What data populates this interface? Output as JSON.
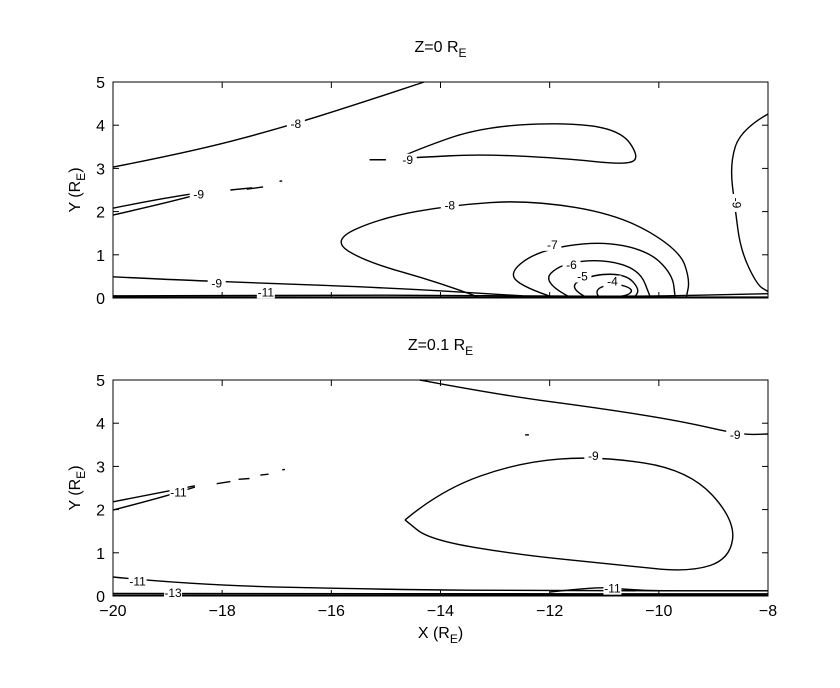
{
  "chart_data": [
    {
      "type": "contour",
      "title": {
        "text": "Z=0 R",
        "subscript": "E"
      },
      "ylabel": {
        "text": "Y (R",
        "subscript": "E",
        "end": ")"
      },
      "xlim": [
        -20,
        -8
      ],
      "ylim": [
        0,
        5
      ],
      "xticks": [
        -20,
        -18,
        -16,
        -14,
        -12,
        -10,
        -8
      ],
      "yticks": [
        0,
        1,
        2,
        3,
        4,
        5
      ],
      "color": "#000000",
      "contour_levels": [
        -8,
        -9,
        -9,
        -8,
        -7,
        -6,
        -5,
        -4,
        -9,
        -9,
        -11
      ]
    },
    {
      "type": "contour",
      "title": {
        "text": "Z=0.1 R",
        "subscript": "E"
      },
      "ylabel": {
        "text": "Y (R",
        "subscript": "E",
        "end": ")"
      },
      "xlabel": {
        "text": "X (R",
        "subscript": "E",
        "end": ")"
      },
      "xlim": [
        -20,
        -8
      ],
      "ylim": [
        0,
        5
      ],
      "xticks": [
        {
          "value": -20,
          "label": "−20"
        },
        {
          "value": -18,
          "label": "−18"
        },
        {
          "value": -16,
          "label": "−16"
        },
        {
          "value": -14,
          "label": "−14"
        },
        {
          "value": -12,
          "label": "−12"
        },
        {
          "value": -10,
          "label": "−10"
        },
        {
          "value": -8,
          "label": "−8"
        }
      ],
      "yticks": [
        0,
        1,
        2,
        3,
        4,
        5
      ],
      "color": "#000000",
      "contour_levels": [
        -9,
        -9,
        -11,
        -11,
        -13,
        -11
      ]
    }
  ]
}
